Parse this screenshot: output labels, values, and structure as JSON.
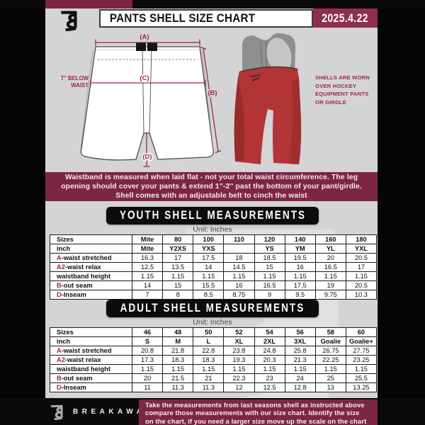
{
  "header": {
    "title": "PANTS SHELL SIZE CHART",
    "date": "2025.4.22"
  },
  "diagram": {
    "label_a": "(A)",
    "label_b": "(B)",
    "label_c": "(C)",
    "label_d": "(D)",
    "below_waist_line1": "7'' BELOW",
    "below_waist_line2": "WAIST"
  },
  "photo_note": {
    "line1": "SHELLS ARE WORN",
    "line2": "OVER HOCKEY",
    "line3": "EQUIPMENT PANTS",
    "line4": "OR GIRDLE"
  },
  "info_band": {
    "line1": "Waistband is measured when laid flat - not your total waist circumference. The leg",
    "line2": "opening should cover your pants & extend 1''-2'' past the bottom of your pant/girdle.",
    "line3": "Shell comes with an adjustable belt to cinch the waist"
  },
  "youth": {
    "banner": "YOUTH SHELL MEASUREMENTS",
    "unit": "Unit: Inches",
    "table": {
      "rows": [
        {
          "prefix": "",
          "label": "Sizes",
          "header": true,
          "values": [
            "Mite",
            "80",
            "100",
            "110",
            "120",
            "140",
            "160",
            "180"
          ]
        },
        {
          "prefix": "",
          "label": "inch",
          "header": true,
          "values": [
            "Mite",
            "Y2XS",
            "YXS",
            "",
            "YS",
            "YM",
            "YL",
            "YXL"
          ]
        },
        {
          "prefix": "A",
          "label": "-waist stretched",
          "header": false,
          "values": [
            "16.3",
            "17",
            "17.5",
            "18",
            "18.5",
            "19.5",
            "20",
            "20.5"
          ]
        },
        {
          "prefix": "A2",
          "label": "-waist relax",
          "header": false,
          "values": [
            "12.5",
            "13.5",
            "14",
            "14.5",
            "15",
            "16",
            "16.5",
            "17"
          ]
        },
        {
          "prefix": "",
          "label": "waistband height",
          "header": false,
          "values": [
            "1.15",
            "1.15",
            "1.15",
            "1.15",
            "1.15",
            "1.15",
            "1.15",
            "1.15"
          ]
        },
        {
          "prefix": "B",
          "label": "-out seam",
          "header": false,
          "values": [
            "14",
            "15",
            "15.5",
            "16",
            "16.5",
            "17.5",
            "19",
            "20.5"
          ]
        },
        {
          "prefix": "D",
          "label": "-Inseam",
          "header": false,
          "values": [
            "7",
            "8",
            "8.5",
            "8.75",
            "9",
            "9.5",
            "9.75",
            "10.3"
          ]
        }
      ]
    }
  },
  "adult": {
    "banner": "ADULT SHELL MEASUREMENTS",
    "unit": "Unit: Inches",
    "table": {
      "rows": [
        {
          "prefix": "",
          "label": "Sizes",
          "header": true,
          "values": [
            "46",
            "48",
            "50",
            "52",
            "54",
            "56",
            "58",
            "60"
          ]
        },
        {
          "prefix": "",
          "label": "inch",
          "header": true,
          "values": [
            "S",
            "M",
            "L",
            "XL",
            "2XL",
            "3XL",
            "Goalie",
            "Goalie+"
          ]
        },
        {
          "prefix": "A",
          "label": "-waist stretched",
          "header": false,
          "values": [
            "20.8",
            "21.8",
            "22.8",
            "23.8",
            "24.8",
            "25.8",
            "26.75",
            "27.75"
          ]
        },
        {
          "prefix": "A2",
          "label": "-waist relax",
          "header": false,
          "values": [
            "17.3",
            "18.3",
            "18.3",
            "19.3",
            "20.3",
            "21.3",
            "22.25",
            "23.25"
          ]
        },
        {
          "prefix": "",
          "label": "waistband height",
          "header": false,
          "values": [
            "1.15",
            "1.15",
            "1.15",
            "1.15",
            "1.15",
            "1.15",
            "1.15",
            "1.15"
          ]
        },
        {
          "prefix": "B",
          "label": "-out seam",
          "header": false,
          "values": [
            "20",
            "21.5",
            "21",
            "22.3",
            "23",
            "24",
            "25",
            "25.5"
          ]
        },
        {
          "prefix": "D",
          "label": "-Inseam",
          "header": false,
          "values": [
            "11",
            "11.3",
            "11.3",
            "12",
            "12.5",
            "12.8",
            "13",
            "13.25"
          ]
        }
      ]
    }
  },
  "footer": {
    "brand": "BREAKAWAY",
    "note_line1": "Take the measurements from last seasons shell as instructed above",
    "note_line2": "compare those measurements  with our size chart. Identify the size",
    "note_line3": "on the chart, if you need a larger size move up the scale on the chart"
  },
  "colors": {
    "maroon_dark": "#7d2643",
    "maroon_bright": "#8e2f4c",
    "accent_red": "#a32343",
    "arrow_maroon": "#9b2747",
    "page_bg": "#d4d4d6",
    "frame_black": "#050505",
    "shell_red": "#b23434"
  }
}
